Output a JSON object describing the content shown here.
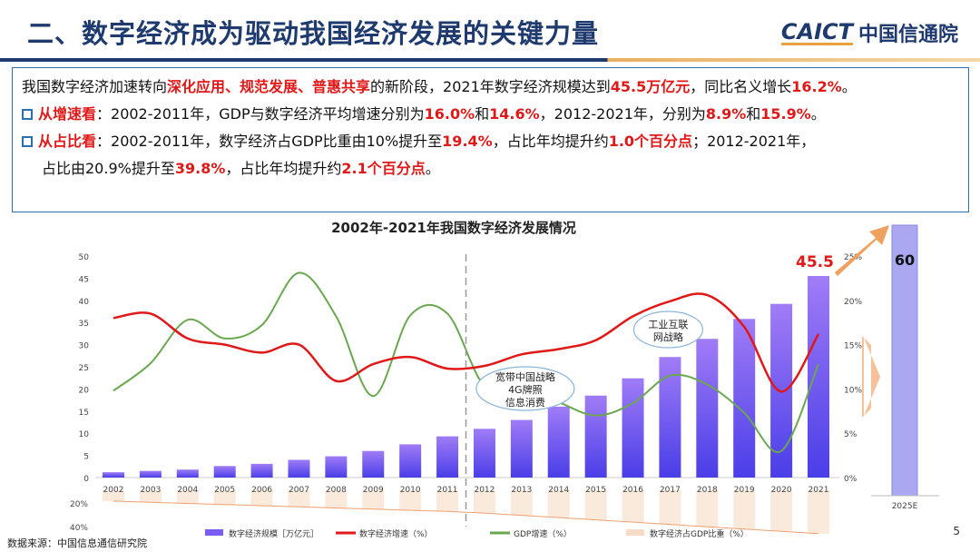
{
  "header": {
    "title": "二、数字经济成为驱动我国经济发展的关键力量",
    "logo_en": "CAICT",
    "logo_cn": "中国信通院"
  },
  "summary": {
    "p1": [
      {
        "t": "我国数字经济加速转向"
      },
      {
        "t": "深化应用、规范发展、普惠共享",
        "r": 1
      },
      {
        "t": "的新阶段，2021年数字经济规模达到"
      },
      {
        "t": "45.5万亿元",
        "r": 1
      },
      {
        "t": "，同比名义增长"
      },
      {
        "t": "16.2%",
        "r": 1
      },
      {
        "t": "。"
      }
    ],
    "p2": [
      {
        "t": "从增速看",
        "r": 1
      },
      {
        "t": "：2002-2011年，GDP与数字经济平均增速分别为"
      },
      {
        "t": "16.0%",
        "r": 1
      },
      {
        "t": "和"
      },
      {
        "t": "14.6%",
        "r": 1
      },
      {
        "t": "，2012-2021年，分别为"
      },
      {
        "t": "8.9%",
        "r": 1
      },
      {
        "t": "和"
      },
      {
        "t": "15.9%",
        "r": 1
      },
      {
        "t": "。"
      }
    ],
    "p3": [
      {
        "t": "从占比看",
        "r": 1
      },
      {
        "t": "：2002-2011年，数字经济占GDP比重由10%提升至"
      },
      {
        "t": "19.4%",
        "r": 1
      },
      {
        "t": "，占比年均提升约"
      },
      {
        "t": "1.0个百分点",
        "r": 1
      },
      {
        "t": "；2012-2021年，"
      }
    ],
    "p4": [
      {
        "t": "占比由20.9%提升至"
      },
      {
        "t": "39.8%",
        "r": 1
      },
      {
        "t": "，占比年均提升约"
      },
      {
        "t": "2.1个百分点",
        "r": 1
      },
      {
        "t": "。"
      }
    ]
  },
  "chart_data": {
    "type": "bar",
    "title": "2002年-2021年我国数字经济发展情况",
    "categories": [
      "2002",
      "2003",
      "2004",
      "2005",
      "2006",
      "2007",
      "2008",
      "2009",
      "2010",
      "2011",
      "2012",
      "2013",
      "2014",
      "2015",
      "2016",
      "2017",
      "2018",
      "2019",
      "2020",
      "2021"
    ],
    "left_axis": {
      "ticks": [
        0,
        5,
        10,
        15,
        20,
        25,
        30,
        35,
        40,
        45,
        50
      ],
      "ylim": [
        0,
        50
      ]
    },
    "right_axis": {
      "ticks": [
        "0%",
        "5%",
        "10%",
        "15%",
        "20%",
        "25%"
      ],
      "ylim": [
        0,
        25
      ]
    },
    "lower_axis": {
      "ticks": [
        "20%",
        "40%"
      ]
    },
    "series": [
      {
        "name": "数字经济规模［万亿元］",
        "type": "bar",
        "color": "#7b5cf0",
        "values": [
          1.2,
          1.5,
          1.8,
          2.6,
          3.1,
          4.0,
          4.8,
          6.0,
          7.5,
          9.3,
          11.0,
          13.0,
          16.0,
          18.5,
          22.4,
          27.2,
          31.3,
          35.8,
          39.2,
          45.5
        ]
      },
      {
        "name": "数字经济增速（%）",
        "type": "line",
        "axis": "right",
        "color": "#e01818",
        "values": [
          18.0,
          18.5,
          15.7,
          15.0,
          14.1,
          15.0,
          10.9,
          12.8,
          13.6,
          12.3,
          12.6,
          13.9,
          14.5,
          15.5,
          18.2,
          19.9,
          20.6,
          17.0,
          9.7,
          16.2
        ]
      },
      {
        "name": "GDP增速（%）",
        "type": "line",
        "axis": "right",
        "color": "#6aa84f",
        "values": [
          9.8,
          12.9,
          17.8,
          15.7,
          17.2,
          23.1,
          18.2,
          9.2,
          18.3,
          18.5,
          10.3,
          10.1,
          8.5,
          7.0,
          8.4,
          11.5,
          10.5,
          7.3,
          3.0,
          12.8
        ]
      },
      {
        "name": "数字经济占GDP比重（%）",
        "type": "bar",
        "axis": "lower",
        "color": "#f6dcc4",
        "values": [
          10,
          11,
          12.1,
          13.1,
          14.2,
          15.2,
          16.3,
          17.3,
          18.4,
          19.4,
          20.9,
          23,
          25.1,
          27.2,
          29.3,
          31.4,
          33.5,
          35.6,
          37.7,
          39.8
        ]
      }
    ],
    "data_label_2021": "45.5",
    "annotations": [
      {
        "text": [
          "宽带中国战略",
          "4G牌照",
          "信息消费"
        ],
        "year": "2013"
      },
      {
        "text": [
          "工业互联",
          "网战略"
        ],
        "year": "2017"
      }
    ],
    "forecast": {
      "category": "2025E",
      "value": 60,
      "label": "60"
    },
    "divider_after": "2011"
  },
  "footer": {
    "source": "数据来源：中国信息通信研究院",
    "page": "5"
  }
}
